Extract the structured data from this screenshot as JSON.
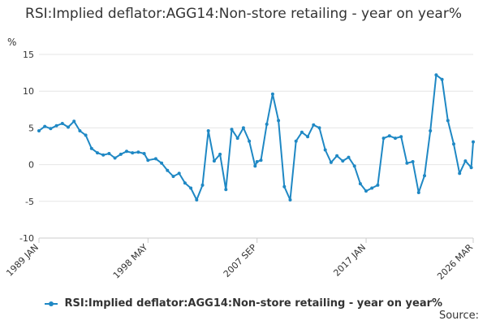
{
  "chart_data": {
    "type": "line",
    "title": "RSI:Implied deflator:AGG14:Non-store retailing - year on year%",
    "ylabel": "%",
    "xlabel": "",
    "ylim": [
      -10,
      15
    ],
    "yticks": [
      -10,
      -5,
      0,
      5,
      10,
      15
    ],
    "xticks": [
      "1989 JAN",
      "1998 MAY",
      "2007 SEP",
      "2017 JAN",
      "2026 MAR"
    ],
    "grid": "horizontal",
    "legend_position": "bottom",
    "series": [
      {
        "name": "RSI:Implied deflator:AGG14:Non-store retailing - year on year%",
        "color": "#1f88c4",
        "points": [
          [
            "1989 JAN",
            4.6
          ],
          [
            "1989 JUL",
            5.2
          ],
          [
            "1990 JAN",
            4.9
          ],
          [
            "1990 JUL",
            5.3
          ],
          [
            "1991 JAN",
            5.6
          ],
          [
            "1991 JUL",
            5.1
          ],
          [
            "1992 JAN",
            5.9
          ],
          [
            "1992 JUL",
            4.6
          ],
          [
            "1993 JAN",
            4.0
          ],
          [
            "1993 JUL",
            2.2
          ],
          [
            "1994 JAN",
            1.6
          ],
          [
            "1994 JUL",
            1.3
          ],
          [
            "1995 JAN",
            1.5
          ],
          [
            "1995 JUL",
            0.9
          ],
          [
            "1996 JAN",
            1.4
          ],
          [
            "1996 JUL",
            1.8
          ],
          [
            "1997 JAN",
            1.6
          ],
          [
            "1997 JUL",
            1.7
          ],
          [
            "1998 JAN",
            1.5
          ],
          [
            "1998 MAY",
            0.6
          ],
          [
            "1999 JAN",
            0.8
          ],
          [
            "1999 JUL",
            0.2
          ],
          [
            "2000 JAN",
            -0.8
          ],
          [
            "2000 JUL",
            -1.6
          ],
          [
            "2001 JAN",
            -1.2
          ],
          [
            "2001 JUL",
            -2.5
          ],
          [
            "2002 JAN",
            -3.2
          ],
          [
            "2002 JUL",
            -4.8
          ],
          [
            "2003 JAN",
            -2.8
          ],
          [
            "2003 JUL",
            4.6
          ],
          [
            "2004 JAN",
            0.5
          ],
          [
            "2004 JUL",
            1.4
          ],
          [
            "2005 JAN",
            -3.4
          ],
          [
            "2005 JUL",
            4.8
          ],
          [
            "2006 JAN",
            3.6
          ],
          [
            "2006 JUL",
            5.0
          ],
          [
            "2007 JAN",
            3.2
          ],
          [
            "2007 JUL",
            -0.2
          ],
          [
            "2007 SEP",
            0.4
          ],
          [
            "2008 JAN",
            0.6
          ],
          [
            "2008 JUL",
            5.5
          ],
          [
            "2009 JAN",
            9.6
          ],
          [
            "2009 JUL",
            6.0
          ],
          [
            "2010 JAN",
            -3.0
          ],
          [
            "2010 JUL",
            -4.8
          ],
          [
            "2011 JAN",
            3.2
          ],
          [
            "2011 JUL",
            4.4
          ],
          [
            "2012 JAN",
            3.8
          ],
          [
            "2012 JUL",
            5.4
          ],
          [
            "2013 JAN",
            5.0
          ],
          [
            "2013 JUL",
            2.0
          ],
          [
            "2014 JAN",
            0.3
          ],
          [
            "2014 JUL",
            1.2
          ],
          [
            "2015 JAN",
            0.5
          ],
          [
            "2015 JUL",
            1.0
          ],
          [
            "2016 JAN",
            -0.2
          ],
          [
            "2016 JUL",
            -2.6
          ],
          [
            "2017 JAN",
            -3.6
          ],
          [
            "2017 JUL",
            -3.2
          ],
          [
            "2018 JAN",
            -2.8
          ],
          [
            "2018 JUL",
            3.6
          ],
          [
            "2019 JAN",
            3.9
          ],
          [
            "2019 JUL",
            3.6
          ],
          [
            "2020 JAN",
            3.8
          ],
          [
            "2020 JUL",
            0.2
          ],
          [
            "2021 JAN",
            0.4
          ],
          [
            "2021 JUL",
            -3.8
          ],
          [
            "2022 JAN",
            -1.5
          ],
          [
            "2022 JUL",
            4.6
          ],
          [
            "2023 JAN",
            12.2
          ],
          [
            "2023 JUL",
            11.6
          ],
          [
            "2024 JAN",
            6.0
          ],
          [
            "2024 JUL",
            2.8
          ],
          [
            "2025 JAN",
            -1.2
          ],
          [
            "2025 JUL",
            0.5
          ],
          [
            "2026 JAN",
            -0.4
          ],
          [
            "2026 MAR",
            3.1
          ]
        ]
      }
    ]
  },
  "source_label": "Source:"
}
